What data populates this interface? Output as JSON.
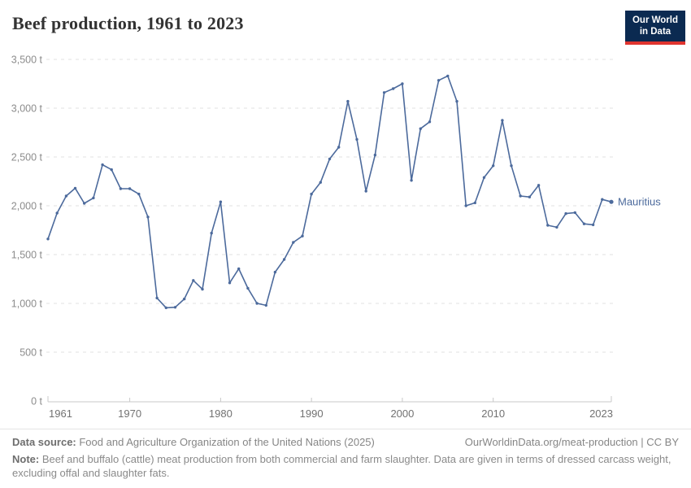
{
  "header": {
    "title": "Beef production, 1961 to 2023",
    "logo": {
      "line1": "Our World",
      "line2": "in Data"
    }
  },
  "chart_data": {
    "type": "line",
    "title": "Beef production, 1961 to 2023",
    "unit": "t",
    "grid": "horizontal-dashed",
    "legend_position": "end-of-line-label",
    "ylim": [
      0,
      3500
    ],
    "ytick_interval": 500,
    "ytick_labels": [
      "0 t",
      "500 t",
      "1,000 t",
      "1,500 t",
      "2,000 t",
      "2,500 t",
      "3,000 t",
      "3,500 t"
    ],
    "xticks": [
      1961,
      1970,
      1980,
      1990,
      2000,
      2010,
      2023
    ],
    "x": [
      1961,
      1962,
      1963,
      1964,
      1965,
      1966,
      1967,
      1968,
      1969,
      1970,
      1971,
      1972,
      1973,
      1974,
      1975,
      1976,
      1977,
      1978,
      1979,
      1980,
      1981,
      1982,
      1983,
      1984,
      1985,
      1986,
      1987,
      1988,
      1989,
      1990,
      1991,
      1992,
      1993,
      1994,
      1995,
      1996,
      1997,
      1998,
      1999,
      2000,
      2001,
      2002,
      2003,
      2004,
      2005,
      2006,
      2007,
      2008,
      2009,
      2010,
      2011,
      2012,
      2013,
      2014,
      2015,
      2016,
      2017,
      2018,
      2019,
      2020,
      2021,
      2022,
      2023
    ],
    "series": [
      {
        "name": "Mauritius",
        "color": "#4C6A9C",
        "values": [
          1660,
          1925,
          2100,
          2180,
          2025,
          2080,
          2420,
          2370,
          2175,
          2175,
          2120,
          1885,
          1055,
          955,
          960,
          1045,
          1235,
          1145,
          1720,
          2040,
          1210,
          1355,
          1155,
          1000,
          980,
          1320,
          1450,
          1625,
          1690,
          2120,
          2240,
          2480,
          2600,
          3070,
          2680,
          2150,
          2520,
          3160,
          3200,
          3250,
          2260,
          2790,
          2860,
          3285,
          3330,
          3070,
          2000,
          2030,
          2290,
          2410,
          2875,
          2410,
          2100,
          2090,
          2210,
          1800,
          1780,
          1920,
          1930,
          1815,
          1805,
          2065,
          2040
        ]
      }
    ]
  },
  "colors": {
    "line": "#4C6A9C",
    "entity_label": "#4C6A9C",
    "grid": "#e2e2e2",
    "axis": "#c8c8c8",
    "xtick_label": "#727272",
    "ytick_label": "#8c8c8c",
    "title": "#333333",
    "footer_text": "#868686",
    "logo_bg": "#0b2a51",
    "logo_bar": "#e0342f"
  },
  "footer": {
    "source_label": "Data source:",
    "source_text": " Food and Agriculture Organization of the United Nations (2025)",
    "link_text": "OurWorldinData.org/meat-production | CC BY",
    "note_label": "Note:",
    "note_text": " Beef and buffalo (cattle) meat production from both commercial and farm slaughter. Data are given in terms of dressed carcass weight, excluding offal and slaughter fats."
  }
}
